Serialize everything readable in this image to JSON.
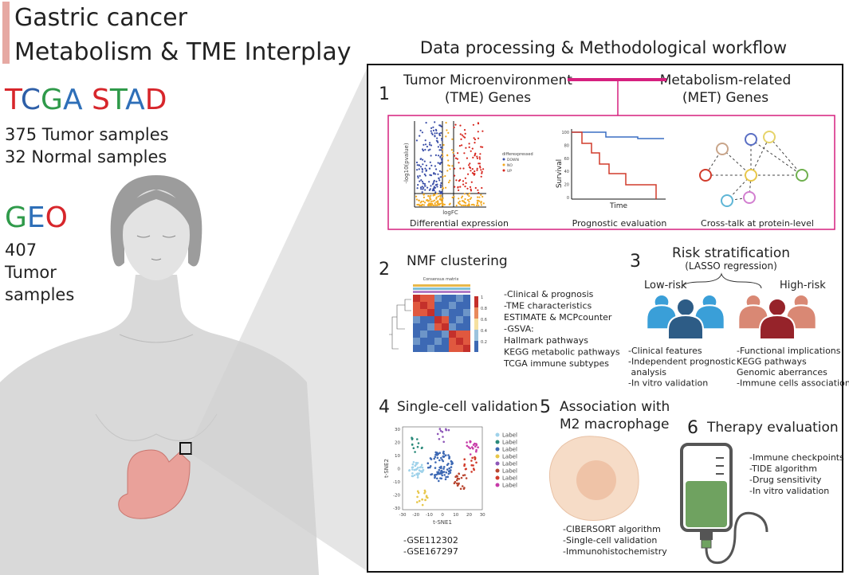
{
  "header": {
    "title": [
      "Gastric cancer",
      "Metabolism & TME Interplay"
    ]
  },
  "tcga": {
    "name": "TCGA STAD",
    "samples": [
      "375 Tumor samples",
      "32 Normal samples"
    ]
  },
  "geo": {
    "name": "GEO",
    "samples": [
      "407",
      "Tumor",
      "samples"
    ]
  },
  "workflow": {
    "title": "Data processing & Methodological workflow",
    "step1": {
      "number": "1",
      "tme": [
        "Tumor Microenvironment",
        "(TME) Genes"
      ],
      "met": [
        "Metabolism-related",
        "(MET) Genes"
      ],
      "panels": [
        "Differential expression",
        "Prognostic evaluation",
        "Cross-talk at protein-level"
      ],
      "volcano": {
        "y_label": "-log10(pvalue)",
        "x_label": "logFC",
        "legend_title": "differexpressed",
        "legend": [
          "DOWN",
          "NO",
          "UP"
        ]
      },
      "survival": {
        "y_label": "Survival",
        "x_label": "Time",
        "yticks": [
          "100",
          "80",
          "60",
          "40",
          "20",
          "0"
        ]
      }
    },
    "step2": {
      "number": "2",
      "title": "NMF clustering",
      "heatmap_title": "Consensus matrix",
      "scale": [
        "1",
        "0.8",
        "0.6",
        "0.4",
        "0.2"
      ],
      "items": [
        "-Clinical & prognosis",
        "-TME characteristics",
        "ESTIMATE & MCPcounter",
        "-GSVA:",
        "Hallmark pathways",
        "KEGG metabolic pathways",
        "TCGA immune subtypes"
      ]
    },
    "step3": {
      "number": "3",
      "title": "Risk stratification",
      "subtitle": "(LASSO regression)",
      "low": "Low-risk",
      "high": "High-risk",
      "low_items": [
        "-Clinical features",
        "-Independent prognostic",
        " analysis",
        "-In vitro validation"
      ],
      "high_items": [
        "-Functional implications",
        "KEGG pathways",
        "Genomic aberrances",
        "-Immune cells association"
      ]
    },
    "step4": {
      "number": "4",
      "title": "Single-cell validation",
      "x_label": "t-SNE1",
      "y_label": "t-SNE2",
      "xticks": [
        "-30",
        "-20",
        "-10",
        "0",
        "10",
        "20",
        "30"
      ],
      "yticks": [
        "30",
        "20",
        "10",
        "0",
        "-10",
        "-20",
        "-30"
      ],
      "legend": [
        "Label",
        "Label",
        "Label",
        "Label",
        "Label",
        "Label",
        "Label",
        "Label"
      ],
      "datasets": [
        "-GSE112302",
        "-GSE167297"
      ]
    },
    "step5": {
      "number": "5",
      "title": [
        "Association with",
        "M2 macrophage"
      ],
      "items": [
        "-CIBERSORT algorithm",
        "-Single-cell validation",
        "-Immunohistochemistry"
      ]
    },
    "step6": {
      "number": "6",
      "title": "Therapy evaluation",
      "items": [
        "-Immune checkpoints",
        "-TIDE algorithm",
        "-Drug sensitivity",
        "-In vitro validation"
      ]
    }
  }
}
